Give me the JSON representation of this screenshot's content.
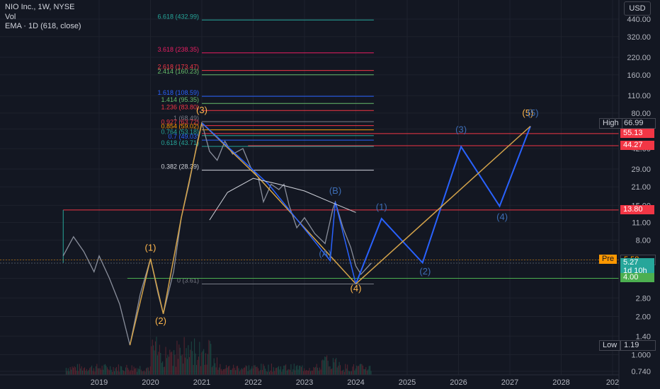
{
  "header": {
    "title": "NIO Inc., 1W, NYSE",
    "vol_label": "Vol",
    "ema_label": "EMA · 1D (618, close)",
    "currency": "USD"
  },
  "chart_data": {
    "type": "candlestick",
    "symbol": "NIO Inc.",
    "interval": "1W",
    "exchange": "NYSE",
    "y_scale": "log",
    "price_axis_ticks": [
      "440.00",
      "320.00",
      "220.00",
      "160.00",
      "110.00",
      "80.00",
      "60.00",
      "42.00",
      "29.00",
      "21.00",
      "15.00",
      "11.00",
      "8.00",
      "5.60",
      "4.00",
      "2.80",
      "2.00",
      "1.40",
      "1.000",
      "0.740"
    ],
    "time_axis_ticks": [
      "2019",
      "2020",
      "2021",
      "2022",
      "2023",
      "2024",
      "2025",
      "2026",
      "2027",
      "2028",
      "202"
    ],
    "fib_levels": [
      {
        "label": "6.618 (432.99)",
        "price": 432.99,
        "color": "#26a69a"
      },
      {
        "label": "3.618 (238.35)",
        "price": 238.35,
        "color": "#e91e63"
      },
      {
        "label": "2.618 (173.47)",
        "price": 173.47,
        "color": "#f23645"
      },
      {
        "label": "2.414 (160.23)",
        "price": 160.23,
        "color": "#66bb6a"
      },
      {
        "label": "1.618 (108.59)",
        "price": 108.59,
        "color": "#2962ff"
      },
      {
        "label": "1.414 (95.35)",
        "price": 95.35,
        "color": "#66bb6a"
      },
      {
        "label": "1.236 (83.80)",
        "price": 83.8,
        "color": "#f23645"
      },
      {
        "label": "1 (68.49)",
        "price": 68.49,
        "color": "#787b86"
      },
      {
        "label": "0.927 (63.72)",
        "price": 63.72,
        "color": "#f23645"
      },
      {
        "label": "0.854 (59.02)",
        "price": 59.02,
        "color": "#ff9800"
      },
      {
        "label": "0.764 (53.18)",
        "price": 53.18,
        "color": "#26a69a"
      },
      {
        "label": "0.7 (49.03)",
        "price": 49.03,
        "color": "#2962ff"
      },
      {
        "label": "0.618 (43.71)",
        "price": 43.71,
        "color": "#26a69a"
      },
      {
        "label": "0.382 (28.39)",
        "price": 28.39,
        "color": "#d1d4dc"
      },
      {
        "label": "0 (3.61)",
        "price": 3.61,
        "color": "#787b86"
      }
    ],
    "price_tags": [
      {
        "label": "High",
        "value": "66.99",
        "price": 66.99,
        "bg": "#131722",
        "fg": "#d1d4dc",
        "label_bg": "#131722"
      },
      {
        "label": "",
        "value": "55.13",
        "price": 55.13,
        "bg": "#f23645",
        "fg": "#ffffff"
      },
      {
        "label": "",
        "value": "44.27",
        "price": 44.27,
        "bg": "#f23645",
        "fg": "#ffffff"
      },
      {
        "label": "",
        "value": "13.80",
        "price": 13.8,
        "bg": "#f23645",
        "fg": "#ffffff"
      },
      {
        "label": "Pre",
        "value": "5.58",
        "price": 5.58,
        "bg": "#131722",
        "fg": "#ff9800",
        "label_bg": "#ff9800"
      },
      {
        "label": "",
        "value": "5.27",
        "price": 5.27,
        "bg": "#26a69a",
        "fg": "#ffffff",
        "sub": "1d 10h"
      },
      {
        "label": "",
        "value": "4.00",
        "price": 4.0,
        "bg": "#4caf50",
        "fg": "#ffffff"
      },
      {
        "label": "Low",
        "value": "1.19",
        "price": 1.19,
        "bg": "#131722",
        "fg": "#d1d4dc",
        "label_bg": "#131722"
      }
    ],
    "wave_labels": [
      {
        "text": "(1)",
        "year": 2020.0,
        "price": 6.6,
        "color": "#ffb74d"
      },
      {
        "text": "(2)",
        "year": 2020.2,
        "price": 1.75,
        "color": "#ffb74d"
      },
      {
        "text": "(3)",
        "year": 2021.0,
        "price": 80.0,
        "color": "#ffb74d"
      },
      {
        "text": "(4)",
        "year": 2024.0,
        "price": 3.15,
        "color": "#ffb74d"
      },
      {
        "text": "(5)",
        "year": 2027.35,
        "price": 76.0,
        "color": "#ffb74d"
      },
      {
        "text": "(A)",
        "year": 2023.4,
        "price": 5.9,
        "color": "#3d6db5"
      },
      {
        "text": "(B)",
        "year": 2023.6,
        "price": 18.5,
        "color": "#3d6db5"
      },
      {
        "text": "(1)",
        "year": 2024.5,
        "price": 13.8,
        "color": "#3d6db5"
      },
      {
        "text": "(2)",
        "year": 2025.35,
        "price": 4.3,
        "color": "#3d6db5"
      },
      {
        "text": "(3)",
        "year": 2026.05,
        "price": 56.0,
        "color": "#3d6db5"
      },
      {
        "text": "(4)",
        "year": 2026.85,
        "price": 11.5,
        "color": "#3d6db5"
      },
      {
        "text": "(5)",
        "year": 2027.45,
        "price": 76.0,
        "color": "#3d6db5"
      }
    ],
    "projection_blue": [
      [
        2024.0,
        3.61
      ],
      [
        2024.5,
        11.8
      ],
      [
        2025.3,
        5.3
      ],
      [
        2026.05,
        43.5
      ],
      [
        2026.8,
        14.8
      ],
      [
        2027.4,
        63.0
      ]
    ],
    "projection_orange": [
      [
        2024.0,
        3.61
      ],
      [
        2027.4,
        63.0
      ]
    ],
    "wave_orange": [
      [
        2019.6,
        1.19
      ],
      [
        2020.0,
        5.7
      ],
      [
        2020.25,
        2.1
      ],
      [
        2020.6,
        12.0
      ],
      [
        2021.0,
        66.99
      ],
      [
        2022.1,
        25.0
      ],
      [
        2023.0,
        10.0
      ],
      [
        2024.0,
        3.61
      ]
    ],
    "wave_blue": [
      [
        2021.0,
        66.99
      ],
      [
        2022.3,
        22.0
      ],
      [
        2023.5,
        5.5
      ],
      [
        2023.6,
        16.0
      ],
      [
        2024.0,
        3.61
      ]
    ],
    "ema_curve": [
      [
        2021.15,
        11.5
      ],
      [
        2021.5,
        19.0
      ],
      [
        2022.0,
        24.5
      ],
      [
        2022.5,
        22.0
      ],
      [
        2023.0,
        19.5
      ],
      [
        2023.5,
        16.0
      ],
      [
        2024.0,
        13.2
      ]
    ]
  }
}
